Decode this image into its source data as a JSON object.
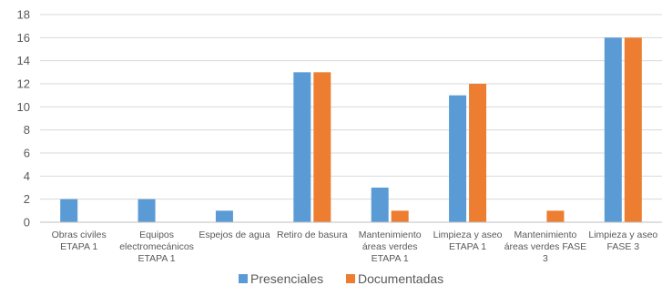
{
  "chart_data": {
    "type": "bar",
    "categories": [
      [
        "Obras civiles",
        "ETAPA 1"
      ],
      [
        "Equipos",
        "electromecánicos",
        "ETAPA 1"
      ],
      [
        "Espejos de agua"
      ],
      [
        "Retiro de basura"
      ],
      [
        "Mantenimiento",
        "áreas verdes",
        "ETAPA 1"
      ],
      [
        "Limpieza y aseo",
        "ETAPA 1"
      ],
      [
        "Mantenimiento",
        "áreas verdes FASE",
        "3"
      ],
      [
        "Limpieza y aseo",
        "FASE 3"
      ]
    ],
    "series": [
      {
        "name": "Presenciales",
        "color": "#5b9bd5",
        "values": [
          2,
          2,
          1,
          13,
          3,
          11,
          0,
          16
        ]
      },
      {
        "name": "Documentadas",
        "color": "#ed7d31",
        "values": [
          0,
          0,
          0,
          13,
          1,
          12,
          1,
          16
        ]
      }
    ],
    "yticks": [
      0,
      2,
      4,
      6,
      8,
      10,
      12,
      14,
      16,
      18
    ],
    "ylim": [
      0,
      18
    ],
    "grid": true,
    "legend_position": "bottom"
  }
}
